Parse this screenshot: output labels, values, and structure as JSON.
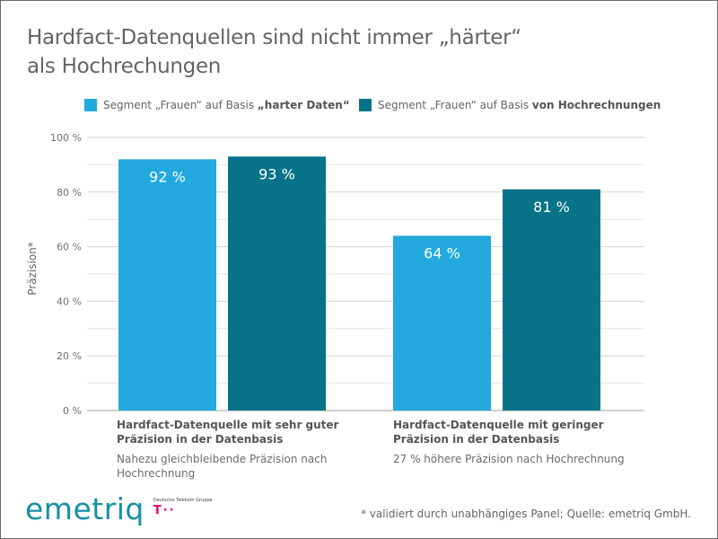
{
  "title": {
    "line1": "Hardfact-Datenquellen sind nicht immer „härter“",
    "line2": "als Hochrechungen"
  },
  "legend": [
    {
      "prefix": "Segment „Frauen“ auf Basis ",
      "bold": "„harter Daten“",
      "color": "#23a9de"
    },
    {
      "prefix": "Segment „Frauen“ auf Basis ",
      "bold": "von Hochrechnungen",
      "color": "#077389"
    }
  ],
  "categories_text": [
    {
      "head": "Hardfact-Datenquelle mit sehr guter Präzision in der Datenbasis",
      "sub": "Nahezu gleichbleibende Präzision nach Hochrechnung"
    },
    {
      "head": "Hardfact-Datenquelle mit geringer Präzision in der Datenbasis",
      "sub": "27 % höhere Präzision nach Hochrechnung"
    }
  ],
  "logo": {
    "word": "emetriq",
    "group": "Deutsche Telekom Gruppe",
    "mark": "T··"
  },
  "footnote": "* validiert durch unabhängiges Panel; Quelle: emetriq GmbH.",
  "chart_data": {
    "type": "bar",
    "title": "Hardfact-Datenquellen sind nicht immer „härter“ als Hochrechungen",
    "xlabel": "",
    "ylabel": "Präzision*",
    "ylim": [
      0,
      100
    ],
    "yticks": [
      0,
      20,
      40,
      60,
      80,
      100
    ],
    "ytick_labels": [
      "0 %",
      "20 %",
      "40 %",
      "60 %",
      "80 %",
      "100 %"
    ],
    "minor_gridlines": [
      10,
      30,
      50,
      70,
      90
    ],
    "grid": true,
    "legend_position": "top",
    "categories": [
      "Hardfact-Datenquelle mit sehr guter Präzision in der Datenbasis",
      "Hardfact-Datenquelle mit geringer Präzision in der Datenbasis"
    ],
    "series": [
      {
        "name": "Segment „Frauen“ auf Basis „harter Daten“",
        "color": "#23a9de",
        "values": [
          92,
          64
        ],
        "labels": [
          "92 %",
          "64 %"
        ]
      },
      {
        "name": "Segment „Frauen“ auf Basis von Hochrechnungen",
        "color": "#077389",
        "values": [
          93,
          81
        ],
        "labels": [
          "93 %",
          "81 %"
        ]
      }
    ]
  }
}
